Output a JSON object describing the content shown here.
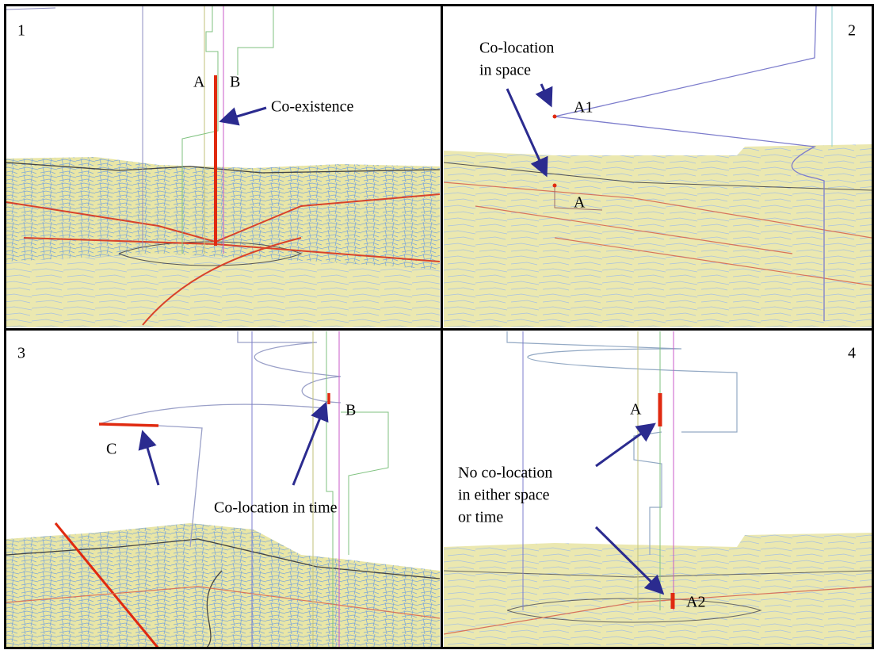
{
  "panels": [
    {
      "number": "1",
      "labels": [
        "A",
        "B",
        "Co-existence"
      ]
    },
    {
      "number": "2",
      "labels": [
        "Co-location",
        "in space",
        "A1",
        "A"
      ]
    },
    {
      "number": "3",
      "labels": [
        "C",
        "B",
        "Co-location in time"
      ]
    },
    {
      "number": "4",
      "labels": [
        "A",
        "No co-location",
        "in either space",
        "or time",
        "A2"
      ]
    }
  ]
}
